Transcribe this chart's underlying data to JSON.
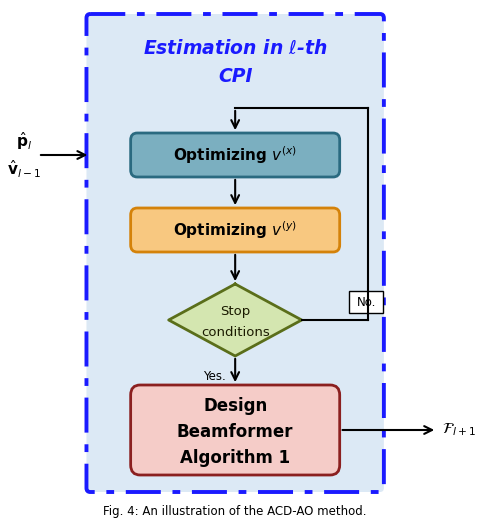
{
  "title_line1": "Estimation in $\\ell$-th",
  "title_line2": "CPI",
  "title_color": "#1a1aff",
  "background_box_color": "#dce9f5",
  "background_box_edge_color": "#1a1aff",
  "box1_label": "Optimizing $v^{(x)}$",
  "box1_fill": "#7bafc0",
  "box1_edge": "#2a6a80",
  "box1_text_color": "#000000",
  "box2_label": "Optimizing $v^{(y)}$",
  "box2_fill": "#f8c880",
  "box2_edge": "#d4820a",
  "box2_text_color": "#000000",
  "diamond_label_line1": "Stop",
  "diamond_label_line2": "conditions",
  "diamond_fill": "#d4e6b0",
  "diamond_edge": "#5a6e1a",
  "box3_line1": "Design",
  "box3_line2": "Beamformer",
  "box3_line3": "Algorithm 1",
  "box3_fill": "#f5ccc8",
  "box3_edge": "#8b2020",
  "box3_text_color": "#000000",
  "input_label1": "$\\hat{\\mathbf{p}}_l$",
  "input_label2": "$\\hat{\\mathbf{v}}_{l-1}$",
  "output_label": "$\\mathcal{F}_{l+1}$",
  "yes_label": "Yes.",
  "no_label": "No.",
  "caption": "Fig. 4: An illustration of the ACD-AO method.",
  "fig_width": 4.78,
  "fig_height": 5.26,
  "dpi": 100
}
